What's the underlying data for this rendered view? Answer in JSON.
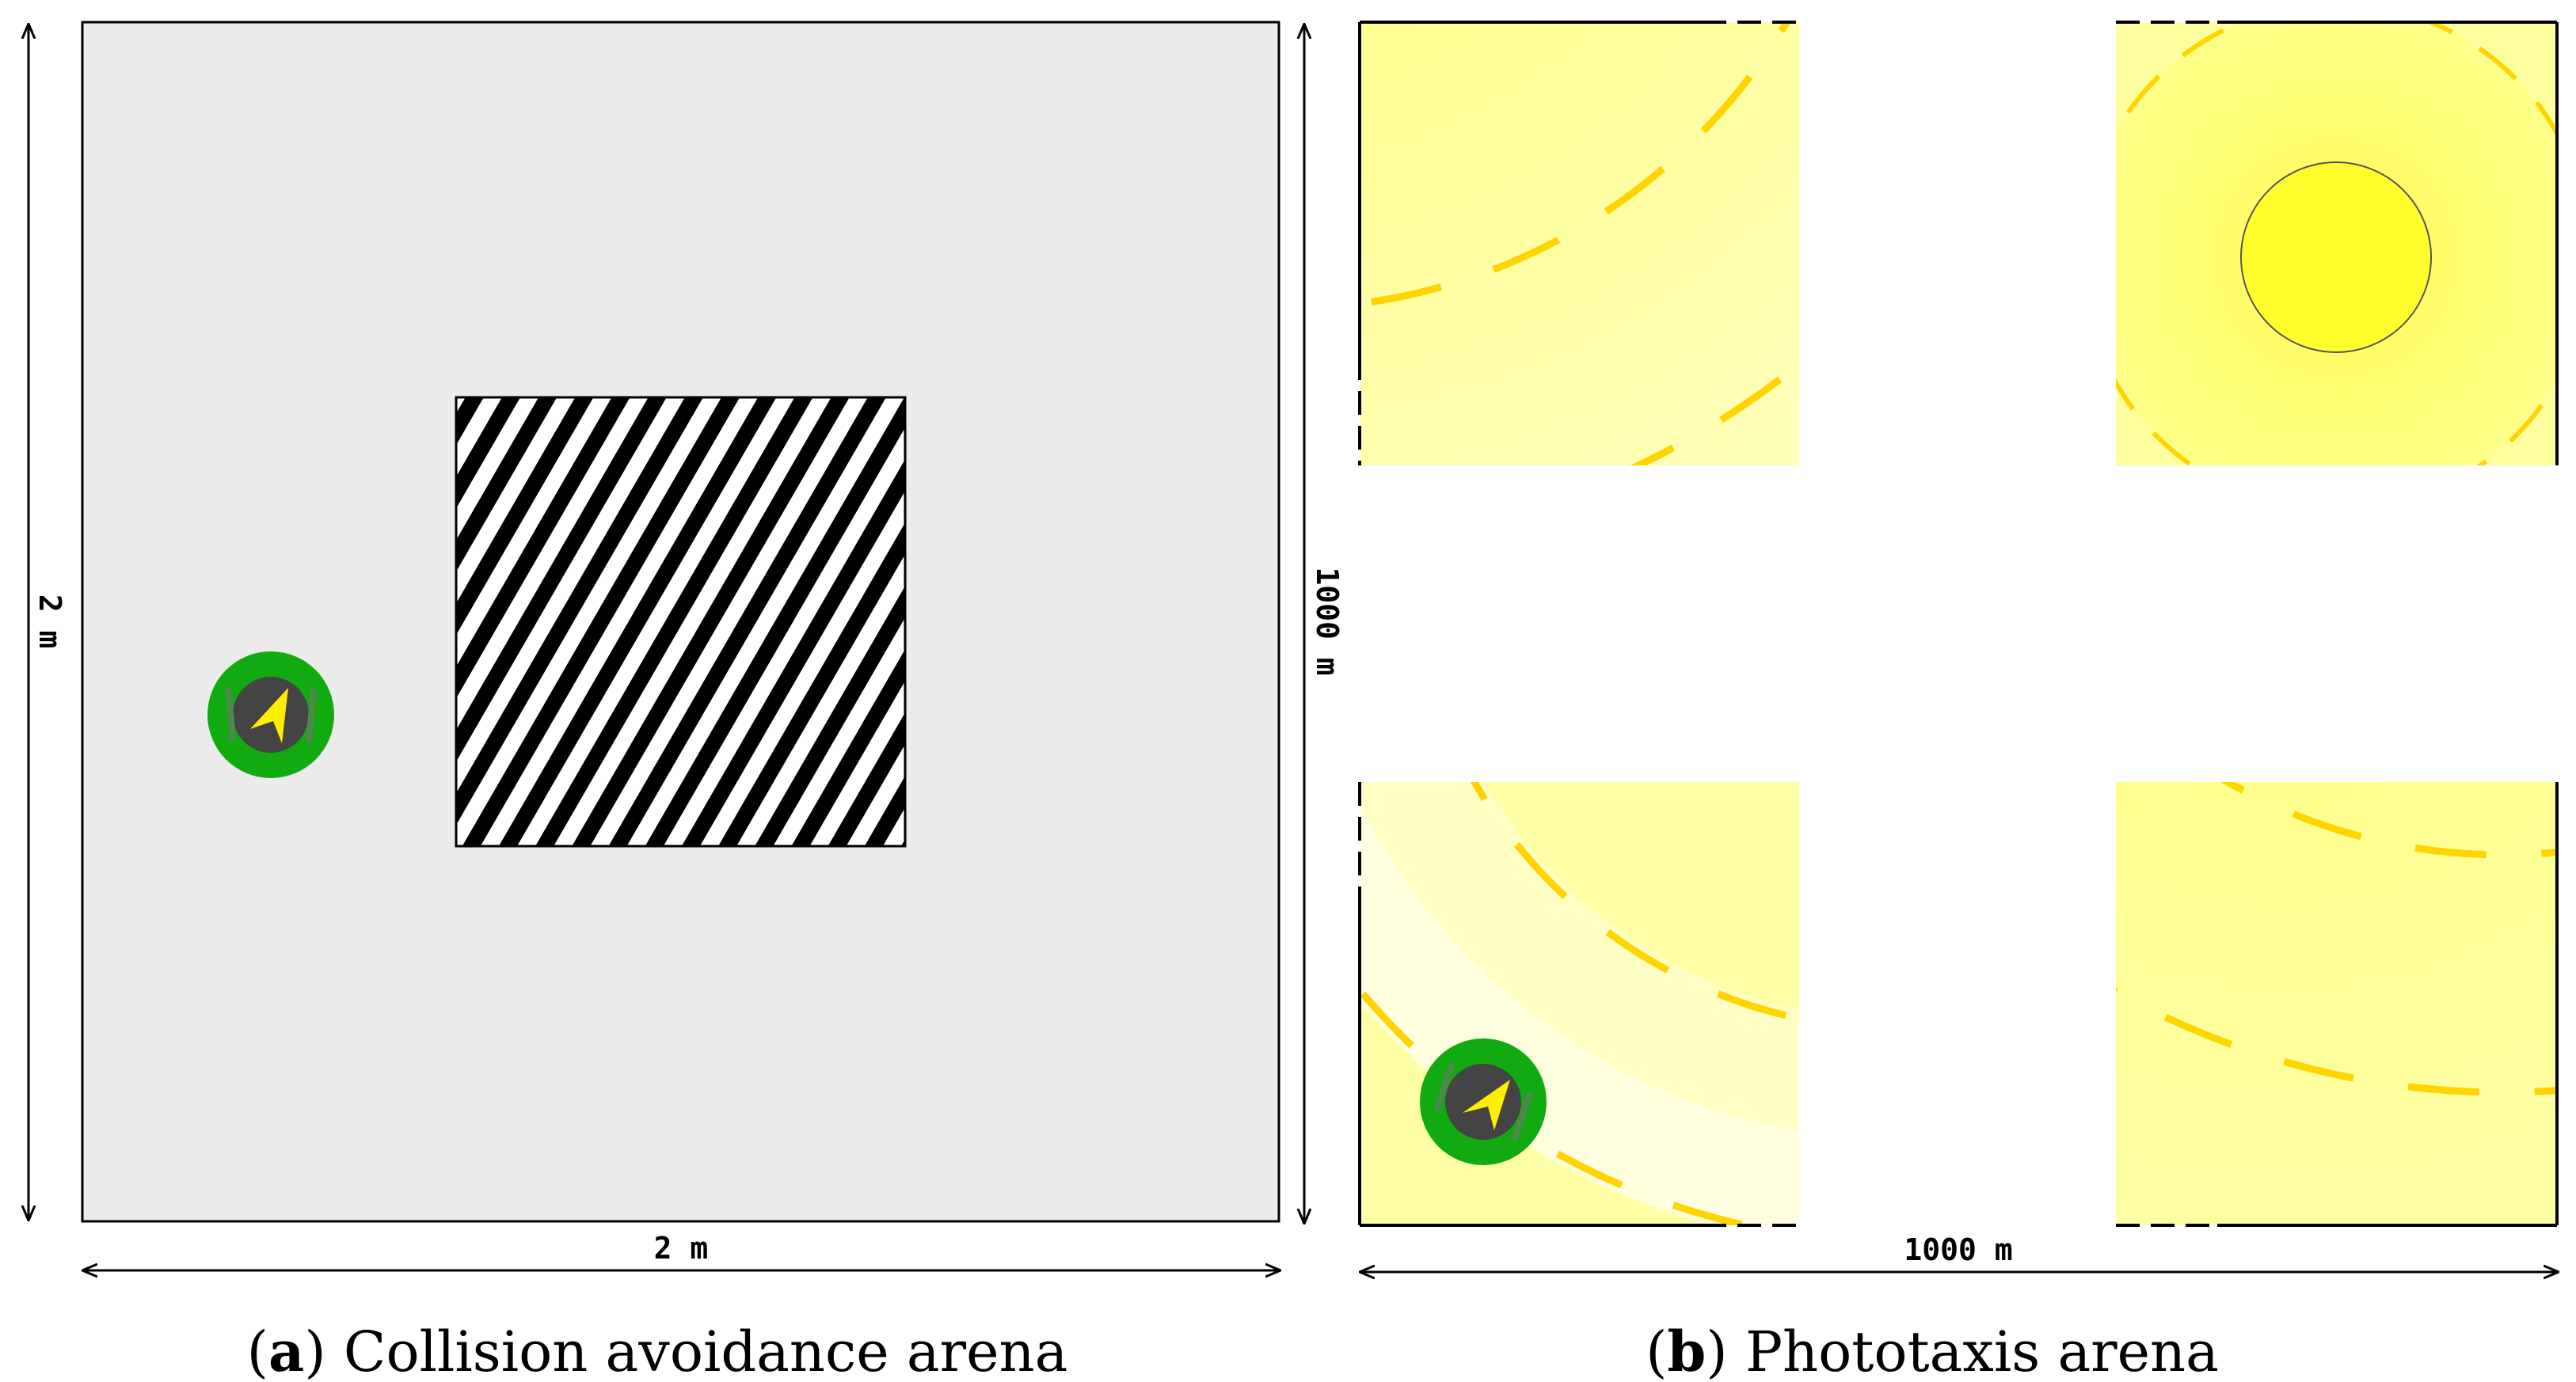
{
  "panel_a": {
    "caption_letter": "a",
    "caption_text": "Collision avoidance arena",
    "width_label": "2 m",
    "height_label": "2 m",
    "colors": {
      "floor": "#ebebeb",
      "obstacle_stripe": "#000000"
    }
  },
  "panel_b": {
    "caption_letter": "b",
    "caption_text": "Phototaxis arena",
    "width_label": "1000 m",
    "height_label": "1000 m",
    "colors": {
      "light_source": "#ffff2e",
      "light_contour": "#ffd700",
      "field": "#ffffa8"
    }
  },
  "robot_colors": {
    "ring": "#11aa11",
    "body": "#444444",
    "arrow": "#ffee00"
  }
}
